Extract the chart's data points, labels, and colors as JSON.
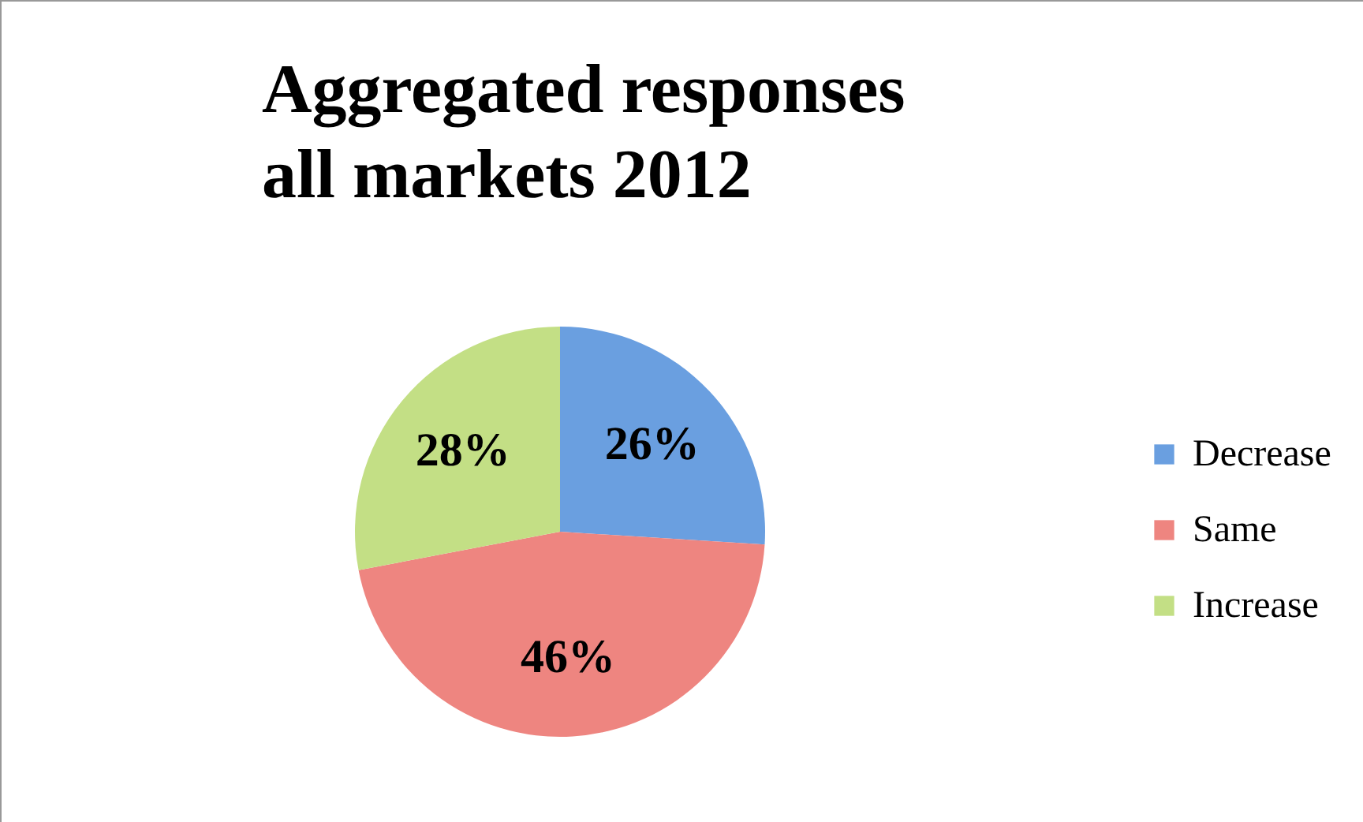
{
  "chart_data": {
    "type": "pie",
    "title": "Aggregated responses all markets 2012",
    "categories": [
      "Decrease",
      "Same",
      "Increase"
    ],
    "values": [
      26,
      46,
      28
    ],
    "colors": [
      "#6a9fe0",
      "#ee8580",
      "#c3df85"
    ],
    "value_labels": [
      "26%",
      "46%",
      "28%"
    ],
    "legend": "right"
  }
}
